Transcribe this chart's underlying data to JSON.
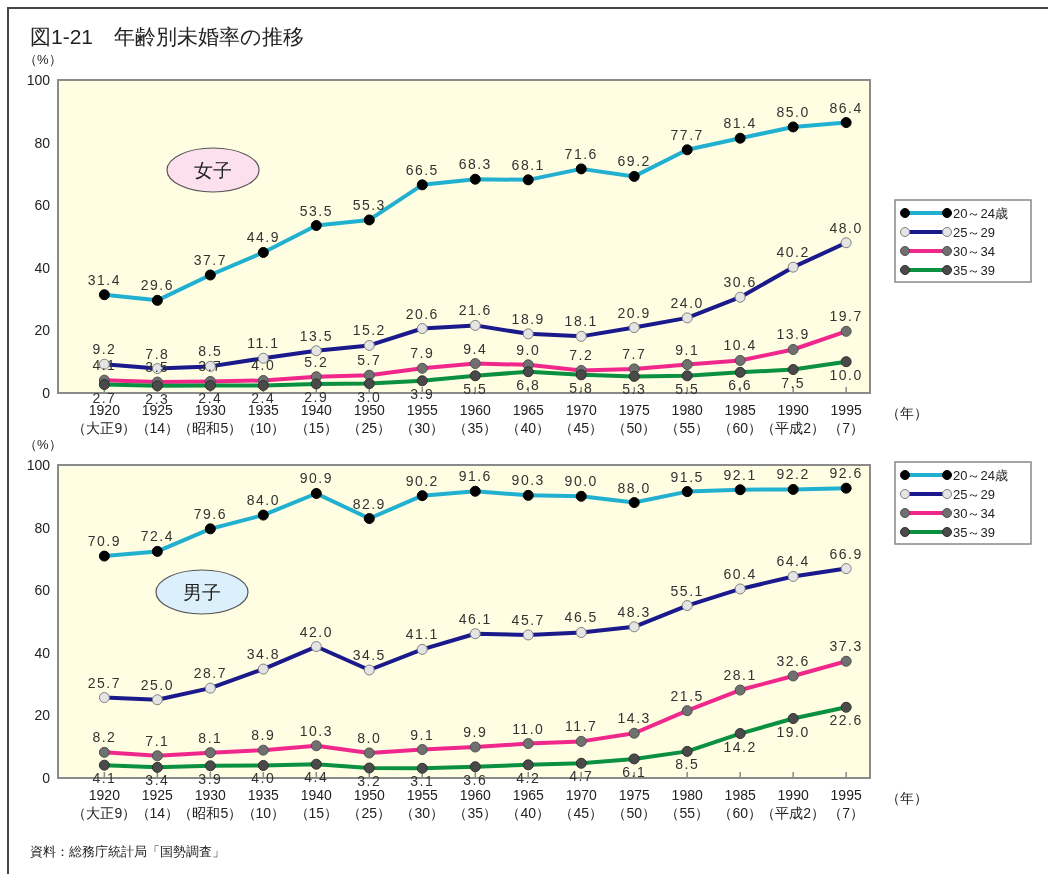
{
  "chart_data": [
    {
      "type": "line",
      "title": "図1-21　年齢別未婚率の推移",
      "ylabel": "（%）",
      "xlabel": "（年）",
      "categories": [
        "1920\n（大正9）",
        "1925\n（14）",
        "1930\n（昭和5）",
        "1935\n（10）",
        "1940\n（15）",
        "1950\n（25）",
        "1955\n（30）",
        "1960\n（35）",
        "1965\n（40）",
        "1970\n（45）",
        "1975\n（50）",
        "1980\n（55）",
        "1985\n（60）",
        "1990\n（平成2）",
        "1995\n（7）"
      ],
      "series": [
        {
          "name": "20～24歳",
          "color": "#22b0d0",
          "values": [
            31.4,
            29.6,
            37.7,
            44.9,
            53.5,
            55.3,
            66.5,
            68.3,
            68.1,
            71.6,
            69.2,
            77.7,
            81.4,
            85.0,
            86.4
          ],
          "value_labels": [
            "31.4",
            "29.6",
            "37.7",
            "44.9",
            "53.5",
            "55.3",
            "66.5",
            "68.3",
            "68.1",
            "71.6",
            "69.2",
            "77.7",
            "81.4",
            "85.0",
            "86.4"
          ]
        },
        {
          "name": "25～29",
          "color": "#1a1a8c",
          "values": [
            9.2,
            7.8,
            8.5,
            11.1,
            13.5,
            15.2,
            20.6,
            21.6,
            18.9,
            18.1,
            20.9,
            24.0,
            30.6,
            40.2,
            48.0
          ],
          "value_labels": [
            "9.2",
            "7.8",
            "8.5",
            "11.1",
            "13.5",
            "15.2",
            "20.6",
            "21.6",
            "18.9",
            "18.1",
            "20.9",
            "24.0",
            "30.6",
            "40.2",
            "48.0"
          ]
        },
        {
          "name": "30～34",
          "color": "#f0288c",
          "values": [
            4.1,
            3.5,
            3.7,
            4.0,
            5.2,
            5.7,
            7.9,
            9.4,
            9.0,
            7.2,
            7.7,
            9.1,
            10.4,
            13.9,
            19.7
          ],
          "value_labels": [
            "4.1",
            "3.5",
            "3.7",
            "4.0",
            "5.2",
            "5.7",
            "7.9",
            "9.4",
            "9.0",
            "7.2",
            "7.7",
            "9.1",
            "10.4",
            "13.9",
            "19.7"
          ]
        },
        {
          "name": "35～39",
          "color": "#0a9040",
          "values": [
            2.7,
            2.3,
            2.4,
            2.4,
            2.9,
            3.0,
            3.9,
            5.5,
            6.8,
            5.8,
            5.3,
            5.5,
            6.6,
            7.5,
            10.0
          ],
          "value_labels": [
            "2.7",
            "2.3",
            "2.4",
            "2.4",
            "2.9",
            "3.0",
            "3.9",
            "5.5",
            "6.8",
            "5.8",
            "5.3",
            "5.5",
            "6.6",
            "7.5",
            "10.0"
          ]
        }
      ],
      "ylim": [
        0,
        100
      ],
      "yticks": [
        0,
        20,
        40,
        60,
        80,
        100
      ],
      "legend": "right",
      "marker": "circle",
      "grid": false,
      "annotations": [
        "女子"
      ]
    },
    {
      "type": "line",
      "ylabel": "（%）",
      "xlabel": "（年）",
      "categories": [
        "1920\n（大正9）",
        "1925\n（14）",
        "1930\n（昭和5）",
        "1935\n（10）",
        "1940\n（15）",
        "1950\n（25）",
        "1955\n（30）",
        "1960\n（35）",
        "1965\n（40）",
        "1970\n（45）",
        "1975\n（50）",
        "1980\n（55）",
        "1985\n（60）",
        "1990\n（平成2）",
        "1995\n（7）"
      ],
      "series": [
        {
          "name": "20～24歳",
          "color": "#22b0d0",
          "values": [
            70.9,
            72.4,
            79.6,
            84.0,
            90.9,
            82.9,
            90.2,
            91.6,
            90.3,
            90.0,
            88.0,
            91.5,
            92.1,
            92.2,
            92.6
          ],
          "value_labels": [
            "70.9",
            "72.4",
            "79.6",
            "84.0",
            "90.9",
            "82.9",
            "90.2",
            "91.6",
            "90.3",
            "90.0",
            "88.0",
            "91.5",
            "92.1",
            "92.2",
            "92.6"
          ]
        },
        {
          "name": "25～29",
          "color": "#1a1a8c",
          "values": [
            25.7,
            25.0,
            28.7,
            34.8,
            42.0,
            34.5,
            41.1,
            46.1,
            45.7,
            46.5,
            48.3,
            55.1,
            60.4,
            64.4,
            66.9
          ],
          "value_labels": [
            "25.7",
            "25.0",
            "28.7",
            "34.8",
            "42.0",
            "34.5",
            "41.1",
            "46.1",
            "45.7",
            "46.5",
            "48.3",
            "55.1",
            "60.4",
            "64.4",
            "66.9"
          ]
        },
        {
          "name": "30～34",
          "color": "#f0288c",
          "values": [
            8.2,
            7.1,
            8.1,
            8.9,
            10.3,
            8.0,
            9.1,
            9.9,
            11.0,
            11.7,
            14.3,
            21.5,
            28.1,
            32.6,
            37.3
          ],
          "value_labels": [
            "8.2",
            "7.1",
            "8.1",
            "8.9",
            "10.3",
            "8.0",
            "9.1",
            "9.9",
            "11.0",
            "11.7",
            "14.3",
            "21.5",
            "28.1",
            "32.6",
            "37.3"
          ]
        },
        {
          "name": "35～39",
          "color": "#0a9040",
          "values": [
            4.1,
            3.4,
            3.9,
            4.0,
            4.4,
            3.2,
            3.1,
            3.6,
            4.2,
            4.7,
            6.1,
            8.5,
            14.2,
            19.0,
            22.6
          ],
          "value_labels": [
            "4.1",
            "3.4",
            "3.9",
            "4.0",
            "4.4",
            "3.2",
            "3.1",
            "3.6",
            "4.2",
            "4.7",
            "6.1",
            "8.5",
            "14.2",
            "19.0",
            "22.6"
          ]
        }
      ],
      "ylim": [
        0,
        100
      ],
      "yticks": [
        0,
        20,
        40,
        60,
        80,
        100
      ],
      "legend": "right",
      "marker": "circle",
      "grid": false,
      "annotations": [
        "男子",
        "資料：総務庁統計局「国勢調査」"
      ]
    }
  ]
}
